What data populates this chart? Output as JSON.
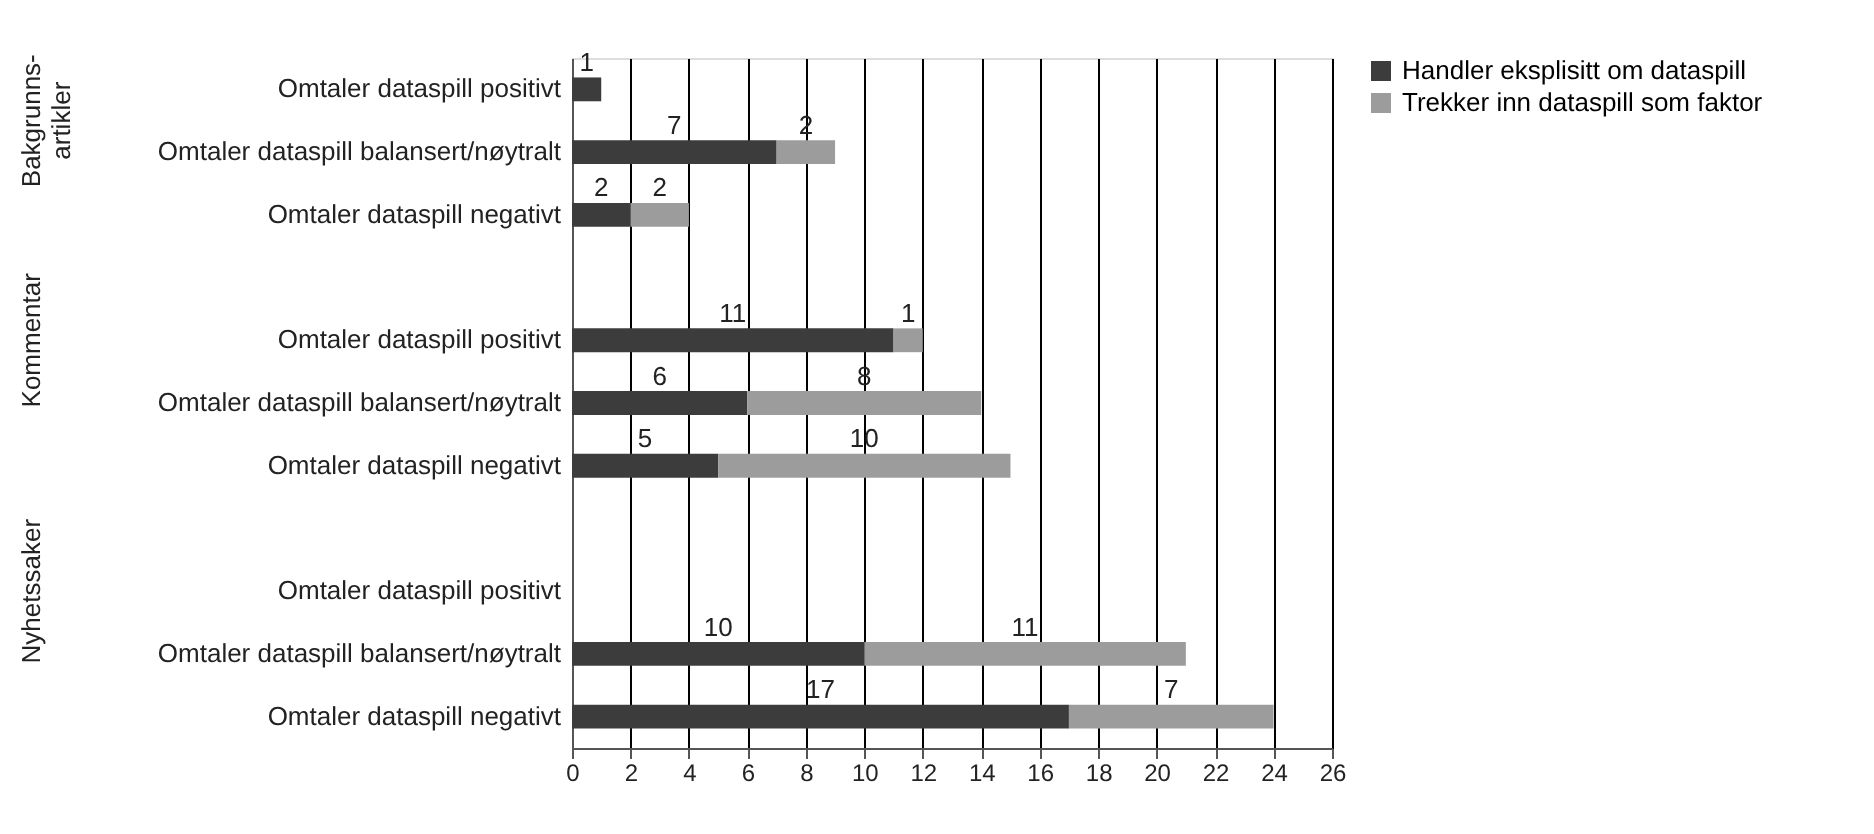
{
  "chart_data": {
    "type": "bar",
    "orientation": "horizontal",
    "stacked": true,
    "categories": [
      "Omtaler dataspill positivt",
      "Omtaler dataspill balansert/nøytralt",
      "Omtaler dataspill negativt",
      null,
      "Omtaler dataspill positivt",
      "Omtaler dataspill balansert/nøytralt",
      "Omtaler dataspill negativt",
      null,
      "Omtaler dataspill positivt",
      "Omtaler dataspill balansert/nøytralt",
      "Omtaler dataspill negativt"
    ],
    "series": [
      {
        "name": "Handler eksplisitt om dataspill",
        "color": "#3c3c3c",
        "values": [
          1,
          7,
          2,
          null,
          11,
          6,
          5,
          null,
          null,
          10,
          17
        ]
      },
      {
        "name": "Trekker inn dataspill som faktor",
        "color": "#9c9c9c",
        "values": [
          null,
          2,
          2,
          null,
          1,
          8,
          10,
          null,
          null,
          11,
          7
        ]
      }
    ],
    "annotations": [
      "Bakgrunns-artikler",
      "Kommentar",
      "Nyhetssaker"
    ],
    "xlim": [
      0,
      26
    ],
    "xticks": [
      0,
      2,
      4,
      6,
      8,
      10,
      12,
      14,
      16,
      18,
      20,
      22,
      24,
      26
    ],
    "grid": "x",
    "legend": "right",
    "data_labels": true
  }
}
